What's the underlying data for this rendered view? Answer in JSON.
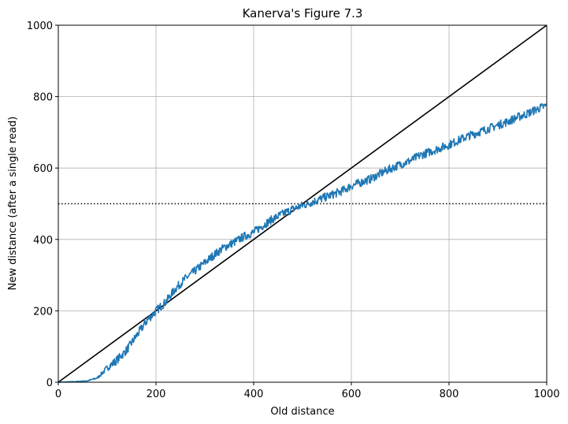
{
  "chart_data": {
    "type": "line",
    "title": "Kanerva's Figure 7.3",
    "xlabel": "Old distance",
    "ylabel": "New distance (after a single read)",
    "xlim": [
      0,
      1000
    ],
    "ylim": [
      0,
      1000
    ],
    "xticks": [
      0,
      200,
      400,
      600,
      800,
      1000
    ],
    "yticks": [
      0,
      200,
      400,
      600,
      800,
      1000
    ],
    "grid": true,
    "colors": {
      "series": "#1f77b4",
      "reference": "#000000",
      "grid": "#b0b0b0"
    },
    "reference_lines": [
      {
        "kind": "diagonal",
        "from": [
          0,
          0
        ],
        "to": [
          1000,
          1000
        ],
        "style": "solid"
      },
      {
        "kind": "horizontal",
        "y": 500,
        "style": "dotted"
      }
    ],
    "series": [
      {
        "x": [
          0,
          20,
          40,
          60,
          80,
          100,
          120,
          140,
          160,
          180,
          200,
          220,
          240,
          260,
          280,
          300,
          320,
          340,
          360,
          380,
          400,
          420,
          440,
          460,
          480,
          500,
          520,
          540,
          560,
          580,
          600,
          620,
          640,
          660,
          680,
          700,
          720,
          740,
          760,
          780,
          800,
          820,
          840,
          860,
          880,
          900,
          920,
          940,
          960,
          980,
          1000
        ],
        "y": [
          0,
          1,
          2,
          4,
          12,
          40,
          62,
          90,
          130,
          170,
          200,
          225,
          262,
          290,
          312,
          335,
          358,
          378,
          392,
          408,
          420,
          440,
          458,
          472,
          485,
          495,
          505,
          515,
          525,
          535,
          550,
          560,
          570,
          585,
          598,
          610,
          620,
          635,
          645,
          655,
          665,
          678,
          690,
          700,
          710,
          720,
          730,
          742,
          752,
          765,
          775
        ],
        "noise": 12
      }
    ]
  }
}
